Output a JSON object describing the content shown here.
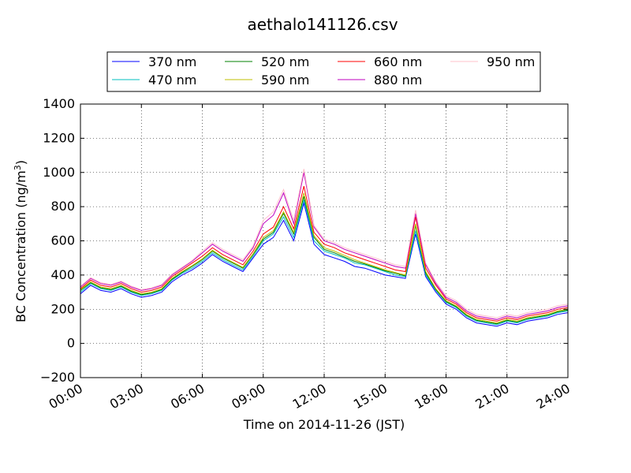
{
  "chart_data": {
    "type": "line",
    "title": "aethalo141126.csv",
    "xlabel": "Time on 2014-11-26 (JST)",
    "ylabel": "BC Concentration (ng/m",
    "ylabel_sup": "3",
    "ylabel_close": ")",
    "xlim": [
      0,
      24
    ],
    "ylim": [
      -200,
      1400
    ],
    "x_ticks": [
      0,
      3,
      6,
      9,
      12,
      15,
      18,
      21,
      24
    ],
    "x_tick_labels": [
      "00:00",
      "03:00",
      "06:00",
      "09:00",
      "12:00",
      "15:00",
      "18:00",
      "21:00",
      "24:00"
    ],
    "y_ticks": [
      -200,
      0,
      200,
      400,
      600,
      800,
      1000,
      1200,
      1400
    ],
    "y_tick_labels": [
      "−200",
      "0",
      "200",
      "400",
      "600",
      "800",
      "1000",
      "1200",
      "1400"
    ],
    "grid": true,
    "legend_position": "top, above plot",
    "x_hours": [
      0,
      0.5,
      1,
      1.5,
      2,
      2.5,
      3,
      3.5,
      4,
      4.5,
      5,
      5.5,
      6,
      6.5,
      7,
      7.5,
      8,
      8.5,
      9,
      9.5,
      10,
      10.5,
      11,
      11.5,
      12,
      12.5,
      13,
      13.5,
      14,
      14.5,
      15,
      15.5,
      16,
      16.5,
      17,
      17.5,
      18,
      18.5,
      19,
      19.5,
      20,
      20.5,
      21,
      21.5,
      22,
      22.5,
      23,
      23.5,
      24
    ],
    "series": [
      {
        "name": "370 nm",
        "color": "#0000ff",
        "values": [
          290,
          340,
          310,
          300,
          320,
          290,
          270,
          280,
          300,
          360,
          400,
          430,
          470,
          520,
          480,
          450,
          420,
          500,
          580,
          620,
          720,
          600,
          820,
          580,
          520,
          500,
          480,
          450,
          440,
          420,
          400,
          390,
          380,
          640,
          390,
          300,
          230,
          200,
          150,
          120,
          110,
          100,
          120,
          110,
          130,
          140,
          150,
          170,
          180
        ]
      },
      {
        "name": "470 nm",
        "color": "#00bfbf",
        "values": [
          300,
          350,
          320,
          310,
          330,
          300,
          280,
          290,
          310,
          370,
          410,
          440,
          480,
          530,
          490,
          460,
          430,
          510,
          600,
          640,
          740,
          620,
          840,
          600,
          540,
          520,
          500,
          470,
          460,
          440,
          420,
          400,
          390,
          660,
          400,
          310,
          240,
          210,
          160,
          130,
          120,
          110,
          130,
          120,
          140,
          150,
          160,
          180,
          190
        ]
      },
      {
        "name": "520 nm",
        "color": "#008000",
        "values": [
          310,
          355,
          325,
          315,
          335,
          305,
          285,
          295,
          315,
          375,
          415,
          450,
          490,
          540,
          500,
          470,
          440,
          520,
          610,
          650,
          760,
          640,
          860,
          620,
          550,
          530,
          505,
          480,
          465,
          445,
          425,
          410,
          395,
          690,
          410,
          315,
          245,
          215,
          165,
          135,
          125,
          115,
          135,
          125,
          145,
          155,
          165,
          185,
          195
        ]
      },
      {
        "name": "590 nm",
        "color": "#bfbf00",
        "values": [
          315,
          360,
          330,
          320,
          340,
          310,
          290,
          300,
          320,
          380,
          420,
          455,
          495,
          545,
          505,
          475,
          445,
          525,
          620,
          660,
          770,
          650,
          880,
          630,
          560,
          540,
          515,
          490,
          470,
          450,
          430,
          415,
          400,
          700,
          420,
          320,
          250,
          220,
          170,
          140,
          130,
          120,
          140,
          130,
          150,
          160,
          170,
          190,
          200
        ]
      },
      {
        "name": "660 nm",
        "color": "#ff0000",
        "values": [
          320,
          370,
          340,
          330,
          350,
          320,
          300,
          310,
          330,
          390,
          430,
          470,
          510,
          560,
          520,
          490,
          460,
          540,
          640,
          680,
          800,
          670,
          920,
          650,
          580,
          560,
          530,
          510,
          490,
          470,
          450,
          430,
          420,
          740,
          440,
          340,
          260,
          230,
          180,
          150,
          140,
          130,
          150,
          140,
          160,
          170,
          180,
          200,
          210
        ]
      },
      {
        "name": "880 nm",
        "color": "#bf00bf",
        "values": [
          330,
          380,
          350,
          340,
          360,
          330,
          310,
          320,
          340,
          400,
          440,
          480,
          530,
          580,
          540,
          510,
          480,
          560,
          700,
          750,
          880,
          700,
          1000,
          680,
          600,
          580,
          550,
          530,
          510,
          490,
          470,
          450,
          440,
          760,
          460,
          350,
          270,
          240,
          190,
          160,
          150,
          140,
          160,
          150,
          170,
          180,
          190,
          210,
          220
        ]
      },
      {
        "name": "950 nm",
        "color": "#ffc0cb",
        "values": [
          335,
          385,
          355,
          345,
          365,
          335,
          315,
          325,
          345,
          405,
          445,
          485,
          540,
          590,
          550,
          520,
          490,
          570,
          720,
          770,
          900,
          720,
          1020,
          690,
          610,
          590,
          560,
          540,
          520,
          500,
          480,
          460,
          450,
          780,
          470,
          360,
          280,
          250,
          200,
          170,
          160,
          150,
          170,
          160,
          180,
          190,
          200,
          220,
          230
        ]
      }
    ]
  }
}
